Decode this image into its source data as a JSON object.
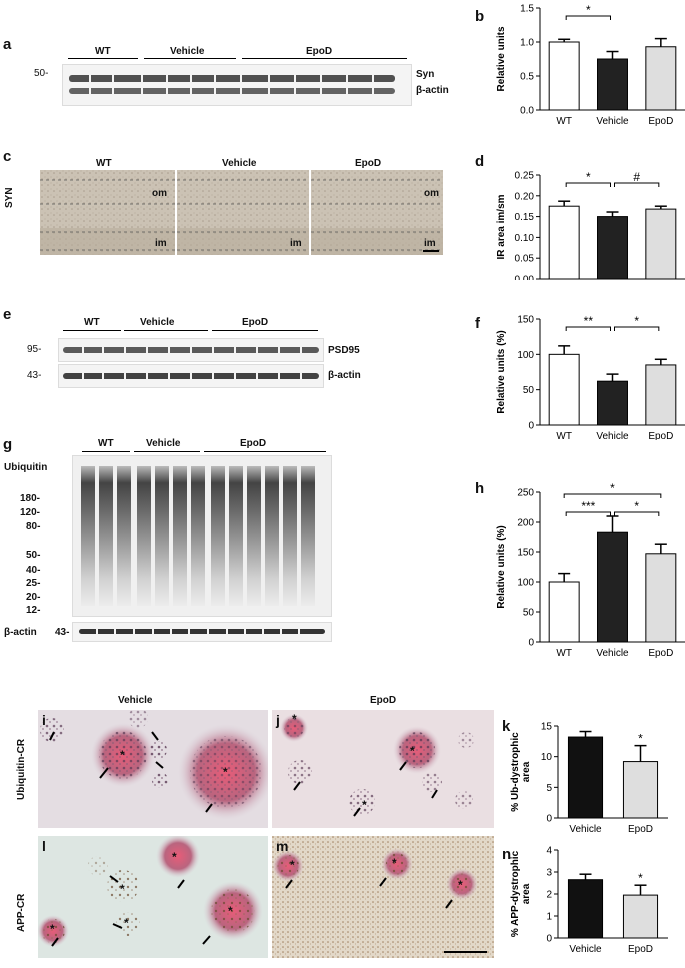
{
  "panel_letters": {
    "a": "a",
    "b": "b",
    "c": "c",
    "d": "d",
    "e": "e",
    "f": "f",
    "g": "g",
    "h": "h",
    "i": "i",
    "j": "j",
    "k": "k",
    "l": "l",
    "m": "m",
    "n": "n"
  },
  "blots": {
    "a": {
      "groups": [
        "WT",
        "Vehicle",
        "EpoD"
      ],
      "marker": "50-",
      "band_labels": [
        "Syn",
        "β-actin"
      ]
    },
    "c": {
      "row_label": "SYN",
      "panels": [
        "WT",
        "Vehicle",
        "EpoD"
      ],
      "layers": [
        "om",
        "im"
      ]
    },
    "e": {
      "groups": [
        "WT",
        "Vehicle",
        "EpoD"
      ],
      "markers": [
        "95-",
        "43-"
      ],
      "band_labels": [
        "PSD95",
        "β-actin"
      ]
    },
    "g": {
      "groups": [
        "WT",
        "Vehicle",
        "EpoD"
      ],
      "top_label": "Ubiquitin",
      "markers": [
        "180-",
        "120-",
        "80-",
        "50-",
        "40-",
        "25-",
        "20-",
        "12-"
      ],
      "bottom_label": "β-actin",
      "bottom_marker": "43-"
    }
  },
  "micro": {
    "col_titles": [
      "Vehicle",
      "EpoD"
    ],
    "row_labels": [
      "Ubiquitin-CR",
      "APP-CR"
    ],
    "asterisk": "*"
  },
  "chart_data": [
    {
      "id": "b",
      "type": "bar",
      "categories": [
        "WT",
        "Vehicle",
        "EpoD"
      ],
      "values": [
        1.0,
        0.75,
        0.93
      ],
      "errors": [
        0.04,
        0.11,
        0.12
      ],
      "ylabel": "Relative units",
      "ylim": [
        0,
        1.5
      ],
      "yticks": [
        "0.0",
        "0.5",
        "1.0",
        "1.5"
      ],
      "colors": [
        "#ffffff",
        "#222222",
        "#dedede"
      ],
      "sig": [
        {
          "from": 0,
          "to": 1,
          "label": "*"
        }
      ]
    },
    {
      "id": "d",
      "type": "bar",
      "categories": [
        "WT",
        "Vehicle",
        "EpoD"
      ],
      "values": [
        0.175,
        0.15,
        0.168
      ],
      "errors": [
        0.012,
        0.011,
        0.007
      ],
      "ylabel": "IR area im/sm",
      "ylim": [
        0,
        0.25
      ],
      "yticks": [
        "0.00",
        "0.05",
        "0.10",
        "0.15",
        "0.20",
        "0.25"
      ],
      "colors": [
        "#ffffff",
        "#222222",
        "#dedede"
      ],
      "sig": [
        {
          "from": 0,
          "to": 1,
          "label": "*"
        },
        {
          "from": 1,
          "to": 2,
          "label": "#"
        }
      ]
    },
    {
      "id": "f",
      "type": "bar",
      "categories": [
        "WT",
        "Vehicle",
        "EpoD"
      ],
      "values": [
        100,
        62,
        85
      ],
      "errors": [
        12,
        10,
        8
      ],
      "ylabel": "Relative units (%)",
      "ylim": [
        0,
        150
      ],
      "yticks": [
        "0",
        "50",
        "100",
        "150"
      ],
      "colors": [
        "#ffffff",
        "#222222",
        "#dedede"
      ],
      "sig": [
        {
          "from": 0,
          "to": 1,
          "label": "**"
        },
        {
          "from": 1,
          "to": 2,
          "label": "*"
        }
      ]
    },
    {
      "id": "h",
      "type": "bar",
      "categories": [
        "WT",
        "Vehicle",
        "EpoD"
      ],
      "values": [
        100,
        183,
        147
      ],
      "errors": [
        14,
        27,
        16
      ],
      "ylabel": "Relative units (%)",
      "ylim": [
        0,
        250
      ],
      "yticks": [
        "0",
        "50",
        "100",
        "150",
        "200",
        "250"
      ],
      "colors": [
        "#ffffff",
        "#222222",
        "#dedede"
      ],
      "sig": [
        {
          "from": 0,
          "to": 2,
          "label": "*",
          "level": 1
        },
        {
          "from": 0,
          "to": 1,
          "label": "***",
          "level": 0
        },
        {
          "from": 1,
          "to": 2,
          "label": "*",
          "level": 0
        }
      ]
    },
    {
      "id": "k",
      "type": "bar",
      "categories": [
        "Vehicle",
        "EpoD"
      ],
      "values": [
        13.2,
        9.2
      ],
      "errors": [
        0.9,
        2.6
      ],
      "ylabel": "% Ub-dystrophic area",
      "ylim": [
        0,
        15
      ],
      "yticks": [
        "0",
        "5",
        "10",
        "15"
      ],
      "colors": [
        "#111111",
        "#dedede"
      ],
      "sig": [
        {
          "bar": 1,
          "label": "*"
        }
      ]
    },
    {
      "id": "n",
      "type": "bar",
      "categories": [
        "Vehicle",
        "EpoD"
      ],
      "values": [
        2.65,
        1.95
      ],
      "errors": [
        0.25,
        0.45
      ],
      "ylabel": "% APP-dystrophic area",
      "ylim": [
        0,
        4
      ],
      "yticks": [
        "0",
        "1",
        "2",
        "3",
        "4"
      ],
      "colors": [
        "#111111",
        "#dedede"
      ],
      "sig": [
        {
          "bar": 1,
          "label": "*"
        }
      ]
    }
  ]
}
